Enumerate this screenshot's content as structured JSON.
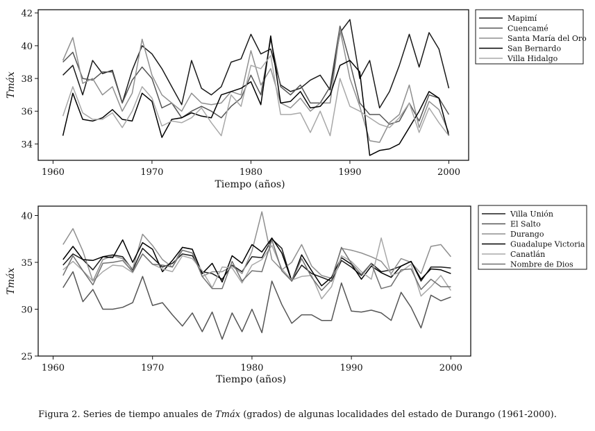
{
  "caption": {
    "prefix": "Figura 2. Series de tiempo anuales de ",
    "var": "Tmáx",
    "suffix": " (grados) de algunas localidades del estado de Durango (1961-2000)."
  },
  "chart_data": [
    {
      "type": "line",
      "xlabel": "Tiempo (años)",
      "ylabel": "Tmáx",
      "xlim": [
        1958.5,
        2002
      ],
      "ylim": [
        33,
        42.2
      ],
      "xticks": [
        1960,
        1970,
        1980,
        1990,
        2000
      ],
      "yticks": [
        34,
        36,
        38,
        40,
        42
      ],
      "grid": false,
      "legend": "outside-right",
      "x": [
        1961,
        1962,
        1963,
        1964,
        1965,
        1966,
        1967,
        1968,
        1969,
        1970,
        1971,
        1972,
        1973,
        1974,
        1975,
        1976,
        1977,
        1978,
        1979,
        1980,
        1981,
        1982,
        1983,
        1984,
        1985,
        1986,
        1987,
        1988,
        1989,
        1990,
        1991,
        1992,
        1993,
        1994,
        1995,
        1996,
        1997,
        1998,
        1999,
        2000
      ],
      "series": [
        {
          "name": "Mapimí",
          "color": "#1a1a1a",
          "values": [
            38.2,
            38.8,
            37.0,
            39.1,
            38.3,
            38.5,
            36.5,
            38.5,
            40.0,
            39.5,
            38.6,
            37.5,
            36.4,
            39.1,
            37.4,
            37.0,
            37.5,
            39.0,
            39.2,
            40.7,
            39.5,
            39.8,
            37.6,
            37.2,
            37.4,
            37.9,
            38.2,
            37.3,
            40.8,
            41.6,
            38.0,
            39.1,
            36.2,
            37.2,
            38.8,
            40.7,
            38.7,
            40.8,
            39.8,
            37.4
          ]
        },
        {
          "name": "Cuencamé",
          "color": "#555555",
          "values": [
            39.0,
            39.6,
            38.0,
            37.9,
            38.4,
            38.4,
            36.5,
            37.9,
            38.7,
            38.0,
            36.2,
            36.5,
            35.6,
            36.0,
            36.3,
            36.0,
            35.6,
            36.3,
            36.8,
            38.2,
            37.0,
            40.4,
            37.5,
            37.0,
            37.6,
            36.5,
            36.5,
            37.5,
            41.2,
            39.0,
            36.5,
            35.8,
            35.8,
            35.2,
            35.4,
            36.5,
            35.4,
            37.0,
            36.8,
            35.8
          ]
        },
        {
          "name": "Santa María del Oro",
          "color": "#8f8f8f",
          "values": [
            39.1,
            40.5,
            37.7,
            38.0,
            37.0,
            37.5,
            36.0,
            37.1,
            40.4,
            38.2,
            37.0,
            36.5,
            36.0,
            37.1,
            36.5,
            36.4,
            36.5,
            37.2,
            37.0,
            39.7,
            37.6,
            38.6,
            36.5,
            36.2,
            36.8,
            36.0,
            36.5,
            36.5,
            41.0,
            38.0,
            36.3,
            34.2,
            34.1,
            35.3,
            35.8,
            37.6,
            35.0,
            36.6,
            36.1,
            34.7
          ]
        },
        {
          "name": "San Bernardo",
          "color": "#000000",
          "values": [
            34.5,
            37.1,
            35.5,
            35.4,
            35.6,
            36.1,
            35.5,
            35.4,
            37.1,
            36.6,
            34.4,
            35.5,
            35.6,
            35.9,
            35.7,
            35.6,
            37.0,
            37.2,
            37.4,
            37.8,
            36.4,
            40.6,
            36.5,
            36.6,
            37.2,
            36.2,
            36.3,
            37.0,
            38.8,
            39.1,
            38.4,
            33.3,
            33.6,
            33.7,
            34.0,
            35.0,
            36.0,
            37.2,
            36.8,
            34.5
          ]
        },
        {
          "name": "Villa Hidalgo",
          "color": "#a8a8a8",
          "values": [
            35.7,
            37.5,
            35.9,
            35.5,
            35.5,
            35.9,
            35.0,
            36.0,
            37.5,
            36.8,
            35.1,
            35.4,
            35.3,
            35.6,
            36.2,
            35.3,
            34.5,
            37.0,
            36.3,
            38.8,
            38.6,
            39.4,
            35.8,
            35.8,
            35.9,
            34.7,
            36.0,
            34.5,
            38.0,
            36.3,
            36.0,
            35.6,
            35.2,
            35.0,
            35.6,
            36.5,
            34.7,
            36.2,
            35.3,
            34.5
          ]
        }
      ]
    },
    {
      "type": "line",
      "xlabel": "Tiempo (años)",
      "ylabel": "Tmáx",
      "xlim": [
        1958.5,
        2002
      ],
      "ylim": [
        25,
        41
      ],
      "xticks": [
        1960,
        1970,
        1980,
        1990,
        2000
      ],
      "yticks": [
        25,
        30,
        35,
        40
      ],
      "grid": false,
      "legend": "outside-right",
      "x": [
        1961,
        1962,
        1963,
        1964,
        1965,
        1966,
        1967,
        1968,
        1969,
        1970,
        1971,
        1972,
        1973,
        1974,
        1975,
        1976,
        1977,
        1978,
        1979,
        1980,
        1981,
        1982,
        1983,
        1984,
        1985,
        1986,
        1987,
        1988,
        1989,
        1990,
        1991,
        1992,
        1993,
        1994,
        1995,
        1996,
        1997,
        1998,
        1999,
        2000
      ],
      "series": [
        {
          "name": "Villa Unión",
          "color": "#1a1a1a",
          "values": [
            34.7,
            35.9,
            35.3,
            34.2,
            35.6,
            35.8,
            35.6,
            34.2,
            36.5,
            35.5,
            34.5,
            34.9,
            35.9,
            35.7,
            34.0,
            33.8,
            33.2,
            34.7,
            34.0,
            35.6,
            35.5,
            37.5,
            36.5,
            33.0,
            34.7,
            33.8,
            33.4,
            33.0,
            35.2,
            34.5,
            33.6,
            34.9,
            34.0,
            34.2,
            34.6,
            35.1,
            33.0,
            34.5,
            34.5,
            34.4
          ]
        },
        {
          "name": "El Salto",
          "color": "#555555",
          "values": [
            32.3,
            34.0,
            30.8,
            32.1,
            30.0,
            30.0,
            30.2,
            30.7,
            33.5,
            30.4,
            30.7,
            29.4,
            28.2,
            29.6,
            27.6,
            29.7,
            26.8,
            29.6,
            27.6,
            30.0,
            27.5,
            33.0,
            30.5,
            28.5,
            29.4,
            29.4,
            28.8,
            28.8,
            32.8,
            29.8,
            29.7,
            29.9,
            29.6,
            28.8,
            31.8,
            30.2,
            28.0,
            31.5,
            30.9,
            31.3
          ]
        },
        {
          "name": "Durango",
          "color": "#8f8f8f",
          "values": [
            36.9,
            38.6,
            36.2,
            33.0,
            35.3,
            35.7,
            35.4,
            34.3,
            38.0,
            36.8,
            35.3,
            34.5,
            36.6,
            36.4,
            33.5,
            34.0,
            34.0,
            34.6,
            33.8,
            36.2,
            40.4,
            35.3,
            34.2,
            35.0,
            36.9,
            34.6,
            33.6,
            33.3,
            36.5,
            36.3,
            36.0,
            35.6,
            35.1,
            33.8,
            35.4,
            35.0,
            33.8,
            36.7,
            36.9,
            35.6
          ]
        },
        {
          "name": "Guadalupe Victoria",
          "color": "#000000",
          "values": [
            35.3,
            36.7,
            35.3,
            35.2,
            35.6,
            35.5,
            37.4,
            35.0,
            37.1,
            36.4,
            34.0,
            35.2,
            36.6,
            36.4,
            33.8,
            34.9,
            32.9,
            35.7,
            34.9,
            36.9,
            36.1,
            37.6,
            36.0,
            33.0,
            35.8,
            34.1,
            32.5,
            33.4,
            35.5,
            34.8,
            33.2,
            34.6,
            33.9,
            33.4,
            34.6,
            35.1,
            33.2,
            34.3,
            34.2,
            33.8
          ]
        },
        {
          "name": "Canatlán",
          "color": "#a8a8a8",
          "values": [
            34.2,
            35.1,
            34.1,
            33.0,
            34.0,
            34.7,
            34.6,
            33.9,
            35.9,
            34.8,
            34.3,
            34.0,
            35.7,
            35.4,
            34.1,
            32.3,
            34.5,
            34.4,
            32.8,
            34.7,
            35.3,
            36.8,
            34.3,
            33.1,
            33.5,
            33.6,
            31.1,
            32.4,
            35.7,
            35.1,
            34.0,
            33.2,
            37.6,
            33.6,
            34.0,
            34.8,
            31.4,
            32.4,
            33.6,
            32.0
          ]
        },
        {
          "name": "Nombre de Dios",
          "color": "#707070",
          "values": [
            33.6,
            35.7,
            34.1,
            32.6,
            34.9,
            35.0,
            35.2,
            34.0,
            35.9,
            34.8,
            34.7,
            34.5,
            36.3,
            36.0,
            33.5,
            32.2,
            32.2,
            35.1,
            33.0,
            34.1,
            34.0,
            37.4,
            34.1,
            33.0,
            35.4,
            33.4,
            32.0,
            33.1,
            36.6,
            34.9,
            33.7,
            34.9,
            32.2,
            32.5,
            34.2,
            34.3,
            32.1,
            33.2,
            32.4,
            32.4
          ]
        }
      ]
    }
  ]
}
